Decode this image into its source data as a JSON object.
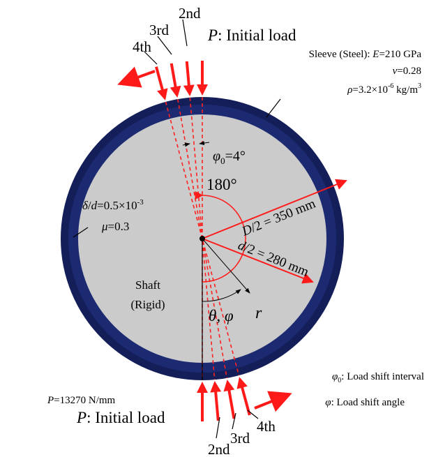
{
  "top_loads": {
    "initial": [
      "P",
      ": Initial load"
    ],
    "order": [
      "2nd",
      "3rd",
      "4th"
    ]
  },
  "bottom_loads": {
    "initial": [
      "P",
      ": Initial load"
    ],
    "order": [
      "2nd",
      "3rd",
      "4th"
    ]
  },
  "sleeve": {
    "title": "Sleeve (Steel): ",
    "E": [
      "E",
      "=210 GPa"
    ],
    "nu": [
      "ν",
      "=0.28"
    ],
    "rho": [
      "ρ",
      "=3.2×10",
      "-6",
      " kg/m",
      "3"
    ]
  },
  "interval_mark": [
    "φ",
    "0",
    "=4°"
  ],
  "angle": "180°",
  "outer_radius": [
    "D",
    "/2 = 350 mm"
  ],
  "inner_radius": [
    "d",
    "/2 = 280 mm"
  ],
  "clearance": [
    "δ",
    "/",
    "d",
    "=0.5×10",
    "-3"
  ],
  "friction": [
    "μ",
    "=0.3"
  ],
  "shaft": [
    "Shaft",
    "(Rigid)"
  ],
  "coords": {
    "theta_phi": [
      "θ",
      ", ",
      "φ"
    ],
    "r": "r"
  },
  "load": [
    "P",
    "=13270 N/mm"
  ],
  "legend": {
    "interval": [
      "φ",
      "0",
      ": Load shift interval"
    ],
    "angle": [
      "φ",
      ": Load shift angle"
    ]
  }
}
